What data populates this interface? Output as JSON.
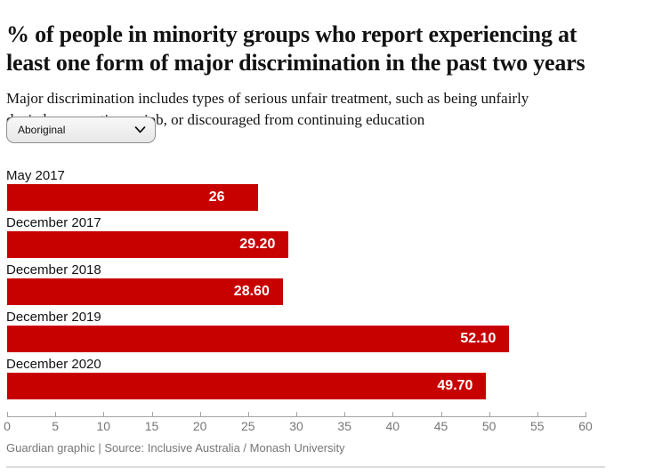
{
  "header": {
    "title_line1": "% of people in minority groups who report experiencing at",
    "title_line2": "least one form of major discrimination in the past two years",
    "subtitle_line1": "Major discrimination includes types of serious unfair treatment, such as being unfairly",
    "subtitle_line2": "denied a promotion or job, or discouraged from continuing education"
  },
  "filter": {
    "selected": "Aboriginal"
  },
  "chart_data": {
    "type": "bar",
    "orientation": "horizontal",
    "title": "% of people in minority groups who report experiencing at least one form of major discrimination in the past two years",
    "subtitle": "Major discrimination includes types of serious unfair treatment, such as being unfairly denied a promotion or job, or discouraged from continuing education",
    "categories": [
      "May 2017",
      "December 2017",
      "December 2018",
      "December 2019",
      "December 2020"
    ],
    "values": [
      26,
      29.2,
      28.6,
      52.1,
      49.7
    ],
    "value_labels": [
      "26",
      "29.20",
      "28.60",
      "52.10",
      "49.70"
    ],
    "xlim": [
      0,
      60
    ],
    "x_ticks": [
      0,
      5,
      10,
      15,
      20,
      25,
      30,
      35,
      40,
      45,
      50,
      55,
      60
    ],
    "grid": false,
    "legend": "none",
    "bar_color": "#c70000",
    "value_label_color": "#ffffff"
  },
  "footer": {
    "credit": "Guardian graphic | Source: Inclusive Australia / Monash University"
  },
  "colors": {
    "bar_red": "#c70000",
    "text_dark": "#121212",
    "muted_gray": "#767676",
    "axis_gray": "#a3a3a3",
    "divider_gray": "#dcdcdc"
  },
  "icons": {
    "chevron_down": "chevron-down-icon"
  }
}
